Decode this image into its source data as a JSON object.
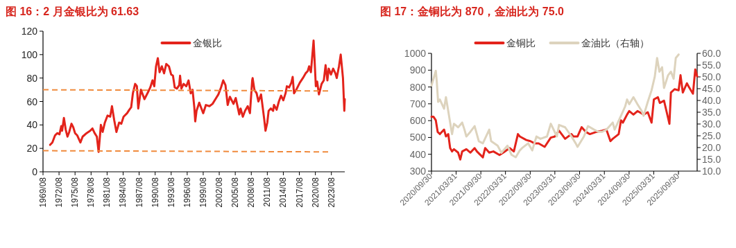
{
  "chart_data": [
    {
      "type": "line",
      "title": "图 16：2 月金银比为 61.63",
      "legend": "top",
      "x": [
        "1970-12",
        "1971-05",
        "1971-11",
        "1972-04",
        "1972-09",
        "1973-01",
        "1973-03",
        "1973-07",
        "1973-11",
        "1974-03",
        "1974-07",
        "1974-12",
        "1975-04",
        "1975-08",
        "1976-01",
        "1976-08",
        "1977-01",
        "1977-10",
        "1978-06",
        "1978-11",
        "1979-04",
        "1979-09",
        "1980-01",
        "1980-06",
        "1980-10",
        "1981-03",
        "1981-09",
        "1982-03",
        "1982-07",
        "1982-12",
        "1983-05",
        "1983-11",
        "1984-04",
        "1984-09",
        "1985-05",
        "1985-10",
        "1986-02",
        "1986-06",
        "1986-11",
        "1987-03",
        "1987-06",
        "1987-12",
        "1988-08",
        "1989-04",
        "1989-09",
        "1990-02",
        "1990-06",
        "1990-10",
        "1991-02",
        "1991-06",
        "1991-11",
        "1992-04",
        "1992-09",
        "1993-03",
        "1993-08",
        "1993-12",
        "1994-04",
        "1994-09",
        "1995-02",
        "1995-04",
        "1995-07",
        "1995-12",
        "1996-06",
        "1996-11",
        "1997-04",
        "1997-08",
        "1997-12",
        "1998-02",
        "1998-05",
        "1998-11",
        "1999-08",
        "2000-02",
        "2000-10",
        "2001-05",
        "2002-01",
        "2002-06",
        "2002-12",
        "2003-05",
        "2003-10",
        "2004-03",
        "2004-08",
        "2005-04",
        "2005-09",
        "2006-05",
        "2006-08",
        "2007-01",
        "2007-06",
        "2007-12",
        "2008-05",
        "2008-10",
        "2008-11",
        "2009-03",
        "2009-08",
        "2009-12",
        "2010-06",
        "2010-09",
        "2011-01",
        "2011-04",
        "2011-08",
        "2011-11",
        "2012-04",
        "2012-09",
        "2012-11",
        "2013-05",
        "2013-10",
        "2014-03",
        "2014-08",
        "2015-01",
        "2015-04",
        "2015-09",
        "2016-02",
        "2016-05",
        "2016-08",
        "2017-01",
        "2017-09",
        "2018-04",
        "2018-10",
        "2019-03",
        "2019-06",
        "2019-10",
        "2020-04",
        "2020-06",
        "2020-09",
        "2020-12",
        "2021-04",
        "2021-10",
        "2022-03",
        "2022-07",
        "2022-11",
        "2023-02",
        "2023-07",
        "2023-12",
        "2024-05",
        "2024-08",
        "2025-01",
        "2025-05",
        "2025-08",
        "2025-10",
        "2026-01",
        "2026-02"
      ],
      "series": [
        {
          "name": "金银比",
          "color": "#e3231b",
          "values": [
            23,
            25,
            31,
            33,
            32,
            39,
            35,
            46,
            36,
            30,
            34,
            41,
            38,
            33,
            31,
            25,
            30,
            33,
            35,
            37,
            33,
            30,
            17,
            40,
            34,
            42,
            48,
            47,
            56,
            44,
            34,
            42,
            41,
            47,
            50,
            53,
            55,
            67,
            75,
            73,
            54,
            70,
            62,
            68,
            72,
            78,
            73,
            90,
            97,
            85,
            90,
            84,
            92,
            90,
            83,
            82,
            72,
            71,
            74,
            82,
            71,
            75,
            73,
            78,
            67,
            70,
            55,
            43,
            52,
            59,
            50,
            57,
            56,
            58,
            63,
            66,
            72,
            78,
            74,
            57,
            64,
            58,
            63,
            49,
            54,
            47,
            52,
            56,
            50,
            78,
            80,
            70,
            67,
            60,
            66,
            57,
            45,
            35,
            42,
            52,
            54,
            52,
            57,
            53,
            60,
            65,
            61,
            67,
            73,
            72,
            76,
            81,
            67,
            70,
            76,
            80,
            84,
            86,
            90,
            85,
            112,
            97,
            73,
            77,
            66,
            75,
            78,
            91,
            78,
            88,
            83,
            88,
            84,
            80,
            90,
            100,
            88,
            80,
            52,
            62
          ]
        },
        {
          "type": "line",
          "color": "#f08a3c",
          "line_style": "dashed",
          "x": [
            "1969-08",
            "2023-02"
          ],
          "values": [
            70,
            69
          ]
        },
        {
          "type": "line",
          "color": "#f08a3c",
          "line_style": "dashed",
          "x": [
            "1969-08",
            "2023-02"
          ],
          "values": [
            18,
            17
          ]
        }
      ],
      "xlim": [
        "1969-08",
        "2026-02"
      ],
      "xticks": [
        {
          "value": "1969-08",
          "label": "1969/08"
        },
        {
          "value": "1972-08",
          "label": "1972/08"
        },
        {
          "value": "1975-08",
          "label": "1975/08"
        },
        {
          "value": "1978-08",
          "label": "1978/08"
        },
        {
          "value": "1981-08",
          "label": "1981/08"
        },
        {
          "value": "1984-08",
          "label": "1984/08"
        },
        {
          "value": "1987-08",
          "label": "1987/08"
        },
        {
          "value": "1990-08",
          "label": "1990/08"
        },
        {
          "value": "1993-08",
          "label": "1993/08"
        },
        {
          "value": "1996-08",
          "label": "1996/08"
        },
        {
          "value": "1999-08",
          "label": "1999/08"
        },
        {
          "value": "2002-08",
          "label": "2002/08"
        },
        {
          "value": "2005-08",
          "label": "2005/08"
        },
        {
          "value": "2008-08",
          "label": "2008/08"
        },
        {
          "value": "2011-08",
          "label": "2011/08"
        },
        {
          "value": "2014-08",
          "label": "2014/08"
        },
        {
          "value": "2017-08",
          "label": "2017/08"
        },
        {
          "value": "2020-08",
          "label": "2020/08"
        },
        {
          "value": "2023-08",
          "label": "2023/08"
        }
      ],
      "ylim": [
        0,
        120
      ],
      "yticks": [
        0,
        20,
        40,
        60,
        80,
        100,
        120
      ]
    },
    {
      "type": "line",
      "title": "图 17：金铜比为 870，金油比为 75.0",
      "legend": "top",
      "series": [
        {
          "name": "金铜比",
          "color": "#e3231b",
          "x": [
            "2020-09-30",
            "2020-10-15",
            "2020-11-01",
            "2020-11-15",
            "2020-12-01",
            "2021-01-01",
            "2021-01-15",
            "2021-02-01",
            "2021-02-15",
            "2021-03-01",
            "2021-03-15",
            "2021-04-15",
            "2021-05-01",
            "2021-05-15",
            "2021-06-15",
            "2021-07-15",
            "2021-08-15",
            "2021-09-01",
            "2021-10-15",
            "2021-11-01",
            "2021-12-01",
            "2022-01-01",
            "2022-02-15",
            "2022-03-15",
            "2022-05-01",
            "2022-06-01",
            "2022-07-01",
            "2022-07-15",
            "2022-09-01",
            "2022-10-01",
            "2022-11-01",
            "2022-12-01",
            "2023-01-15",
            "2023-03-01",
            "2023-04-01",
            "2023-05-01",
            "2023-06-15",
            "2023-08-01",
            "2023-08-15",
            "2023-09-15",
            "2023-10-15",
            "2023-11-15",
            "2023-12-15",
            "2024-02-01",
            "2024-03-15",
            "2024-04-15",
            "2024-05-15",
            "2024-06-01",
            "2024-07-15",
            "2024-08-01",
            "2024-08-15",
            "2024-09-15",
            "2024-10-01",
            "2024-11-01",
            "2024-12-01",
            "2025-01-01",
            "2025-01-15",
            "2025-02-15",
            "2025-03-15",
            "2025-04-01",
            "2025-05-01",
            "2025-05-15",
            "2025-06-15",
            "2025-07-15",
            "2025-07-25",
            "2025-08-05",
            "2025-09-01",
            "2025-10-01",
            "2025-10-15",
            "2025-11-01",
            "2025-12-01",
            "2025-12-15",
            "2026-01-15",
            "2026-02-01",
            "2026-02-15"
          ],
          "values": [
            623,
            623,
            602,
            533,
            520,
            547,
            506,
            520,
            437,
            417,
            430,
            410,
            369,
            417,
            430,
            410,
            437,
            417,
            382,
            437,
            410,
            417,
            396,
            410,
            437,
            417,
            520,
            506,
            485,
            478,
            465,
            465,
            444,
            499,
            506,
            540,
            492,
            520,
            506,
            506,
            561,
            533,
            520,
            533,
            540,
            547,
            478,
            492,
            520,
            602,
            588,
            636,
            657,
            636,
            657,
            643,
            636,
            650,
            588,
            726,
            739,
            705,
            719,
            616,
            581,
            767,
            787,
            780,
            870,
            767,
            822,
            801,
            760,
            904,
            863
          ]
        },
        {
          "name": "金油比（右轴）",
          "color": "#ddd3bd",
          "axis": "y2",
          "x": [
            "2020-09-30",
            "2020-10-15",
            "2020-11-01",
            "2020-11-08",
            "2020-11-18",
            "2020-12-01",
            "2021-01-01",
            "2021-01-15",
            "2021-02-01",
            "2021-02-15",
            "2021-03-01",
            "2021-03-15",
            "2021-04-15",
            "2021-05-15",
            "2021-06-01",
            "2021-06-15",
            "2021-07-15",
            "2021-08-15",
            "2021-09-15",
            "2021-10-15",
            "2021-12-01",
            "2021-12-15",
            "2022-02-01",
            "2022-03-01",
            "2022-04-15",
            "2022-05-15",
            "2022-06-15",
            "2022-07-15",
            "2022-08-01",
            "2022-09-15",
            "2022-10-15",
            "2022-11-15",
            "2022-12-15",
            "2023-02-01",
            "2023-03-01",
            "2023-04-15",
            "2023-05-01",
            "2023-06-15",
            "2023-08-01",
            "2023-09-01",
            "2023-09-15",
            "2023-11-01",
            "2023-12-01",
            "2024-01-15",
            "2024-02-15",
            "2024-03-15",
            "2024-04-15",
            "2024-06-01",
            "2024-06-15",
            "2024-08-01",
            "2024-09-01",
            "2024-09-15",
            "2024-10-01",
            "2024-11-01",
            "2024-12-01",
            "2025-01-01",
            "2025-01-15",
            "2025-02-15",
            "2025-03-15",
            "2025-04-08",
            "2025-04-25",
            "2025-05-12",
            "2025-06-01",
            "2025-06-15",
            "2025-07-15",
            "2025-08-05",
            "2025-08-25",
            "2025-09-10",
            "2025-10-01"
          ],
          "values": [
            46.3,
            49.2,
            52.6,
            48.2,
            39.4,
            40.4,
            36.5,
            41.4,
            35.5,
            30.6,
            25.7,
            30.1,
            28.6,
            30.6,
            27.6,
            24.7,
            26.7,
            29.1,
            22.7,
            21.8,
            27.6,
            22.7,
            20.8,
            17.8,
            20.8,
            16.9,
            15.9,
            18.8,
            19.8,
            21.8,
            18.8,
            24.7,
            23.7,
            24.7,
            30.1,
            24.7,
            29.6,
            28.6,
            24.7,
            21.8,
            20.3,
            24.7,
            29.1,
            27.6,
            26.7,
            26.7,
            27.6,
            30.6,
            27.6,
            33.5,
            37.5,
            40.4,
            38.4,
            41.4,
            38.4,
            35.5,
            33.5,
            39.4,
            44.3,
            50.2,
            58.0,
            52.2,
            54.1,
            45.3,
            50.7,
            52.2,
            49.2,
            58.0,
            59.5
          ]
        }
      ],
      "xlim": [
        "2020-09-30",
        "2026-02-15"
      ],
      "xticks": [
        {
          "value": "2020-09-30",
          "label": "2020/09/30"
        },
        {
          "value": "2021-03-31",
          "label": "2021/03/31"
        },
        {
          "value": "2021-09-30",
          "label": "2021/09/30"
        },
        {
          "value": "2022-03-31",
          "label": "2022/03/31"
        },
        {
          "value": "2022-09-30",
          "label": "2022/09/30"
        },
        {
          "value": "2023-03-31",
          "label": "2023/03/31"
        },
        {
          "value": "2023-09-30",
          "label": "2023/09/30"
        },
        {
          "value": "2024-03-31",
          "label": "2024/03/31"
        },
        {
          "value": "2024-09-30",
          "label": "2024/09/30"
        },
        {
          "value": "2025-03-31",
          "label": "2025/03/31"
        },
        {
          "value": "2025-09-30",
          "label": "2025/09/30"
        }
      ],
      "ylim": [
        300,
        1000
      ],
      "yticks": [
        300,
        400,
        500,
        600,
        700,
        800,
        900,
        1000
      ],
      "y2lim": [
        10,
        60
      ],
      "y2ticks": [
        {
          "value": 10,
          "label": "10.0"
        },
        {
          "value": 15,
          "label": "15.0"
        },
        {
          "value": 20,
          "label": "20.0"
        },
        {
          "value": 25,
          "label": "25.0"
        },
        {
          "value": 30,
          "label": "30.0"
        },
        {
          "value": 35,
          "label": "35.0"
        },
        {
          "value": 40,
          "label": "40.0"
        },
        {
          "value": 45,
          "label": "45.0"
        },
        {
          "value": 50,
          "label": "50.0"
        },
        {
          "value": 55,
          "label": "55.0"
        },
        {
          "value": 60,
          "label": "60.0"
        }
      ]
    }
  ]
}
